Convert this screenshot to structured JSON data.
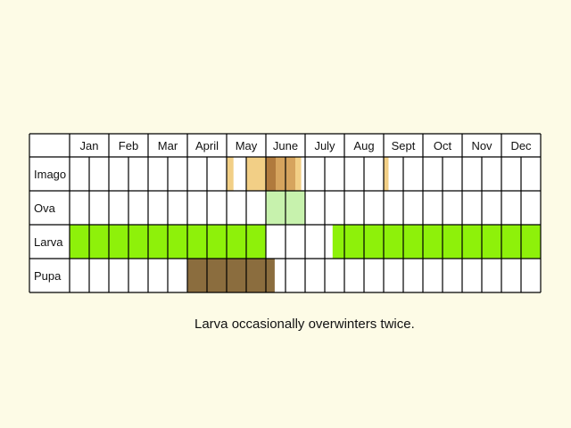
{
  "chart_data": {
    "type": "table",
    "months": [
      "Jan",
      "Feb",
      "Mar",
      "April",
      "May",
      "June",
      "July",
      "Aug",
      "Sept",
      "Oct",
      "Nov",
      "Dec"
    ],
    "subdivisions_per_month": 2,
    "stages": [
      {
        "name": "Imago",
        "periods": [
          {
            "start": 8.0,
            "end": 8.35,
            "color": "#f2cf86"
          },
          {
            "start": 9.0,
            "end": 10.0,
            "color": "#f2cf86"
          },
          {
            "start": 10.0,
            "end": 10.5,
            "color": "#b07a3d"
          },
          {
            "start": 10.5,
            "end": 11.5,
            "color": "#d6a45e"
          },
          {
            "start": 11.5,
            "end": 11.8,
            "color": "#f2cf86"
          },
          {
            "start": 16.0,
            "end": 16.25,
            "color": "#f2cf86"
          }
        ]
      },
      {
        "name": "Ova",
        "periods": [
          {
            "start": 10.0,
            "end": 12.0,
            "color": "#c7f2ad"
          }
        ]
      },
      {
        "name": "Larva",
        "periods": [
          {
            "start": 0.0,
            "end": 10.0,
            "color": "#8ef10a"
          },
          {
            "start": 13.4,
            "end": 24.0,
            "color": "#8ef10a"
          }
        ]
      },
      {
        "name": "Pupa",
        "periods": [
          {
            "start": 6.0,
            "end": 10.45,
            "color": "#8b6d3e"
          }
        ]
      }
    ]
  },
  "note": "Larva occasionally overwinters twice."
}
